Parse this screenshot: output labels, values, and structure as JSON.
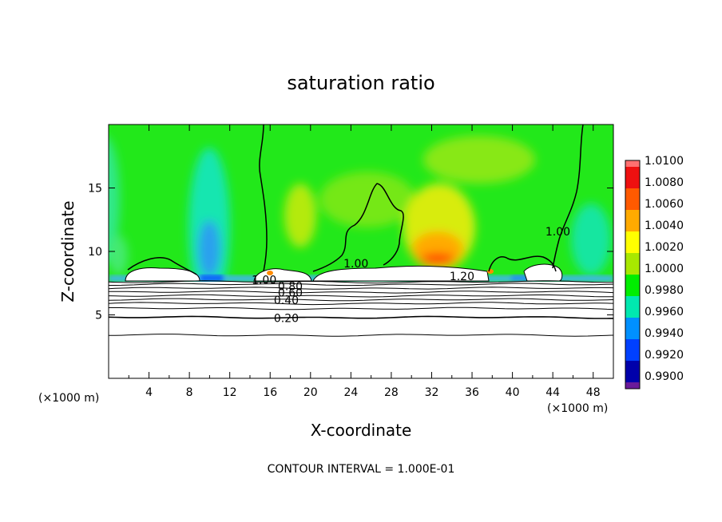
{
  "chart_data": {
    "type": "heatmap",
    "title": "saturation ratio",
    "xlabel": "X-coordinate",
    "ylabel": "Z-coordinate",
    "x_unit_left": "(×1000 m)",
    "x_unit_right": "(×1000 m)",
    "xlim": [
      0,
      50
    ],
    "ylim": [
      0,
      20
    ],
    "x_ticks": [
      4,
      8,
      12,
      16,
      20,
      24,
      28,
      32,
      36,
      40,
      44,
      48
    ],
    "x_tick_labels": [
      "4",
      "8",
      "12",
      "16",
      "20",
      "24",
      "28",
      "32",
      "36",
      "40",
      "44",
      "48"
    ],
    "y_ticks": [
      5,
      10,
      15
    ],
    "y_tick_labels": [
      "5",
      "10",
      "15"
    ],
    "footer": "CONTOUR INTERVAL = 1.000E-01",
    "colorbar": {
      "labels": [
        "1.0100",
        "1.0080",
        "1.0060",
        "1.0040",
        "1.0020",
        "1.0000",
        "0.9980",
        "0.9960",
        "0.9940",
        "0.9920",
        "0.9900"
      ],
      "colors": [
        "#ff7070",
        "#ee1010",
        "#ff5a00",
        "#ffaa00",
        "#ffff00",
        "#a8e800",
        "#00ee00",
        "#00e8b0",
        "#0090ff",
        "#0040ff",
        "#0000aa",
        "#6a1a9a"
      ],
      "min": 0.99,
      "max": 1.01
    },
    "contour_labels": [
      {
        "text": "1.00",
        "x": 44.5,
        "y": 11.5
      },
      {
        "text": "1.00",
        "x": 24.5,
        "y": 9.0
      },
      {
        "text": "1.20",
        "x": 35.0,
        "y": 8.0
      },
      {
        "text": "1.00",
        "x": 15.4,
        "y": 7.7
      },
      {
        "text": "0.80",
        "x": 18.0,
        "y": 7.2
      },
      {
        "text": "0.60",
        "x": 18.0,
        "y": 6.7
      },
      {
        "text": "0.40",
        "x": 17.6,
        "y": 6.1
      },
      {
        "text": "0.20",
        "x": 17.6,
        "y": 4.7
      }
    ],
    "contour_levels_z": [
      7.6,
      7.4,
      7.1,
      6.8,
      6.5,
      6.2,
      5.9,
      5.5,
      4.8,
      3.4
    ]
  }
}
